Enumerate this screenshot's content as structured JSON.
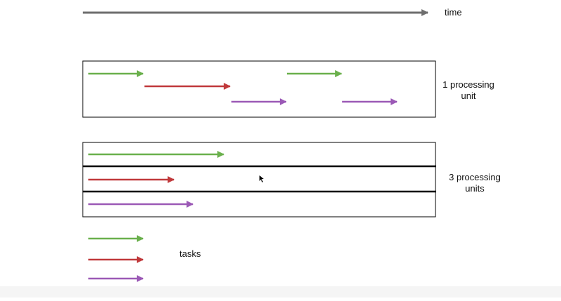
{
  "time_label": "time",
  "single_unit_label": [
    "1 processing",
    "unit"
  ],
  "multi_unit_label": [
    "3 processing",
    "units"
  ],
  "tasks_label": "tasks",
  "colors": {
    "task_green": "#6ab04c",
    "task_red": "#c0393b",
    "task_purple": "#9b59b6",
    "time_axis": "#6e6e6e",
    "outline": "#000000"
  },
  "tasks": [
    {
      "name": "task-green",
      "color": "#6ab04c"
    },
    {
      "name": "task-red",
      "color": "#c0393b"
    },
    {
      "name": "task-purple",
      "color": "#9b59b6"
    }
  ]
}
